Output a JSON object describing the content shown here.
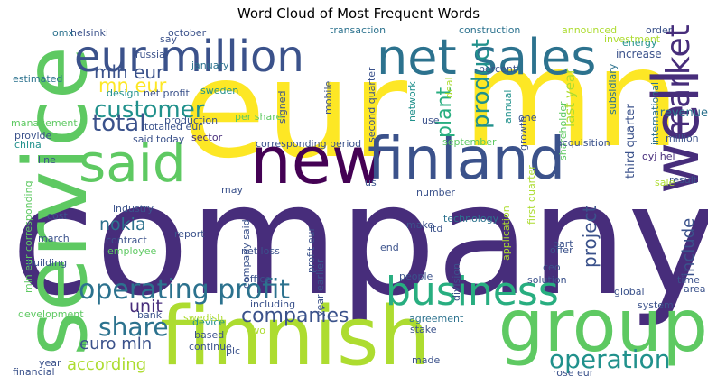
{
  "title": "Word Cloud of Most Frequent Words",
  "palette": {
    "dark_purple": "#440154",
    "purple": "#472d7b",
    "indigo": "#3b528b",
    "blue": "#2c728e",
    "teal": "#21918c",
    "green_teal": "#28ae80",
    "green": "#5ec962",
    "yellow_green": "#addc30",
    "yellow": "#fde725"
  },
  "words": [
    {
      "text": "company",
      "color": "#472d7b"
    },
    {
      "text": "eur",
      "color": "#fde725"
    },
    {
      "text": "mn",
      "color": "#fde725"
    },
    {
      "text": "service",
      "color": "#5ec962"
    },
    {
      "text": "finnish",
      "color": "#addc30"
    },
    {
      "text": "group",
      "color": "#5ec962"
    },
    {
      "text": "new",
      "color": "#440154"
    },
    {
      "text": "finland",
      "color": "#3b528b"
    },
    {
      "text": "net sales",
      "color": "#2c728e"
    },
    {
      "text": "eur million",
      "color": "#3b528b"
    },
    {
      "text": "said",
      "color": "#5ec962"
    },
    {
      "text": "business",
      "color": "#28ae80"
    },
    {
      "text": "operating profit",
      "color": "#2c728e"
    },
    {
      "text": "market",
      "color": "#472d7b"
    },
    {
      "text": "product",
      "color": "#21918c"
    },
    {
      "text": "well",
      "color": "#472d7b"
    },
    {
      "text": "customer",
      "color": "#21918c"
    },
    {
      "text": "total",
      "color": "#3b528b"
    },
    {
      "text": "mln eur",
      "color": "#3b528b"
    },
    {
      "text": "mn eur",
      "color": "#fde725"
    },
    {
      "text": "share",
      "color": "#2c728e"
    },
    {
      "text": "operation",
      "color": "#21918c"
    },
    {
      "text": "nokia",
      "color": "#2c728e"
    },
    {
      "text": "plant",
      "color": "#28ae80"
    },
    {
      "text": "project",
      "color": "#3b528b"
    },
    {
      "text": "companies",
      "color": "#3b528b"
    },
    {
      "text": "euro mln",
      "color": "#3b528b"
    },
    {
      "text": "according",
      "color": "#addc30"
    },
    {
      "text": "unit",
      "color": "#472d7b"
    },
    {
      "text": "include",
      "color": "#3b528b"
    },
    {
      "text": "russia",
      "color": "#3b528b"
    },
    {
      "text": "construction",
      "color": "#2c728e"
    },
    {
      "text": "transaction",
      "color": "#2c728e"
    },
    {
      "text": "investment",
      "color": "#addc30"
    },
    {
      "text": "increase",
      "color": "#3b528b"
    },
    {
      "text": "energy",
      "color": "#21918c"
    },
    {
      "text": "order",
      "color": "#3b528b"
    },
    {
      "text": "announced",
      "color": "#addc30"
    },
    {
      "text": "percent",
      "color": "#3b528b"
    },
    {
      "text": "second quarter",
      "color": "#3b528b"
    },
    {
      "text": "signed",
      "color": "#3b528b"
    },
    {
      "text": "network",
      "color": "#21918c"
    },
    {
      "text": "annual",
      "color": "#21918c"
    },
    {
      "text": "growth",
      "color": "#3b528b"
    },
    {
      "text": "one",
      "color": "#3b528b"
    },
    {
      "text": "last year",
      "color": "#addc30"
    },
    {
      "text": "subsidiary",
      "color": "#2c728e"
    },
    {
      "text": "shareholder",
      "color": "#5ec962"
    },
    {
      "text": "international",
      "color": "#2c728e"
    },
    {
      "text": "third quarter",
      "color": "#3b528b"
    },
    {
      "text": "revenue",
      "color": "#2c728e"
    },
    {
      "text": "million",
      "color": "#3b528b"
    },
    {
      "text": "oyj hel",
      "color": "#472d7b"
    },
    {
      "text": "result",
      "color": "#3b528b"
    },
    {
      "text": "sale",
      "color": "#addc30"
    },
    {
      "text": "acquisition",
      "color": "#3b528b"
    },
    {
      "text": "september",
      "color": "#5ec962"
    },
    {
      "text": "corresponding period",
      "color": "#3b528b"
    },
    {
      "text": "said today",
      "color": "#3b528b"
    },
    {
      "text": "sector",
      "color": "#472d7b"
    },
    {
      "text": "totalled eur",
      "color": "#3b528b"
    },
    {
      "text": "production",
      "color": "#3b528b"
    },
    {
      "text": "net profit",
      "color": "#3b528b"
    },
    {
      "text": "design",
      "color": "#21918c"
    },
    {
      "text": "sweden",
      "color": "#21918c"
    },
    {
      "text": "per share",
      "color": "#5ec962"
    },
    {
      "text": "january",
      "color": "#2c728e"
    },
    {
      "text": "october",
      "color": "#3b528b"
    },
    {
      "text": "say",
      "color": "#3b528b"
    },
    {
      "text": "helsinki",
      "color": "#3b528b"
    },
    {
      "text": "omx",
      "color": "#2c728e"
    },
    {
      "text": "estimated",
      "color": "#2c728e"
    },
    {
      "text": "management",
      "color": "#5ec962"
    },
    {
      "text": "provide",
      "color": "#3b528b"
    },
    {
      "text": "china",
      "color": "#21918c"
    },
    {
      "text": "line",
      "color": "#3b528b"
    },
    {
      "text": "mln eur corresponding",
      "color": "#5ec962"
    },
    {
      "text": "industry",
      "color": "#3b528b"
    },
    {
      "text": "contract",
      "color": "#3b528b"
    },
    {
      "text": "employee",
      "color": "#5ec962"
    },
    {
      "text": "march",
      "color": "#3b528b"
    },
    {
      "text": "cost",
      "color": "#3b528b"
    },
    {
      "text": "building",
      "color": "#3b528b"
    },
    {
      "text": "development",
      "color": "#5ec962"
    },
    {
      "text": "financial",
      "color": "#3b528b"
    },
    {
      "text": "year",
      "color": "#3b528b"
    },
    {
      "text": "bank",
      "color": "#3b528b"
    },
    {
      "text": "device",
      "color": "#21918c"
    },
    {
      "text": "based",
      "color": "#3b528b"
    },
    {
      "text": "plc",
      "color": "#3b528b"
    },
    {
      "text": "continue",
      "color": "#3b528b"
    },
    {
      "text": "report",
      "color": "#3b528b"
    },
    {
      "text": "net loss",
      "color": "#3b528b"
    },
    {
      "text": "may",
      "color": "#3b528b"
    },
    {
      "text": "company said",
      "color": "#3b528b"
    },
    {
      "text": "profit eur",
      "color": "#3b528b"
    },
    {
      "text": "year earlier",
      "color": "#3b528b"
    },
    {
      "text": "including",
      "color": "#3b528b"
    },
    {
      "text": "office",
      "color": "#3b528b"
    },
    {
      "text": "technology",
      "color": "#2c728e"
    },
    {
      "text": "number",
      "color": "#3b528b"
    },
    {
      "text": "make",
      "color": "#3b528b"
    },
    {
      "text": "ltd",
      "color": "#3b528b"
    },
    {
      "text": "end",
      "color": "#3b528b"
    },
    {
      "text": "agreement",
      "color": "#2c728e"
    },
    {
      "text": "stake",
      "color": "#3b528b"
    },
    {
      "text": "people",
      "color": "#3b528b"
    },
    {
      "text": "made",
      "color": "#3b528b"
    },
    {
      "text": "division",
      "color": "#3b528b"
    },
    {
      "text": "first quarter",
      "color": "#addc30"
    },
    {
      "text": "application",
      "color": "#addc30"
    },
    {
      "text": "part",
      "color": "#3b528b"
    },
    {
      "text": "offer",
      "color": "#3b528b"
    },
    {
      "text": "ceo",
      "color": "#3b528b"
    },
    {
      "text": "solution",
      "color": "#3b528b"
    },
    {
      "text": "global",
      "color": "#3b528b"
    },
    {
      "text": "system",
      "color": "#3b528b"
    },
    {
      "text": "area",
      "color": "#3b528b"
    },
    {
      "text": "time",
      "color": "#3b528b"
    },
    {
      "text": "rose eur",
      "color": "#3b528b"
    },
    {
      "text": "two",
      "color": "#addc30"
    },
    {
      "text": "swedish",
      "color": "#addc30"
    },
    {
      "text": "mobile",
      "color": "#3b528b"
    },
    {
      "text": "use",
      "color": "#3b528b"
    },
    {
      "text": "us",
      "color": "#3b528b"
    },
    {
      "text": "deal",
      "color": "#addc30"
    }
  ]
}
